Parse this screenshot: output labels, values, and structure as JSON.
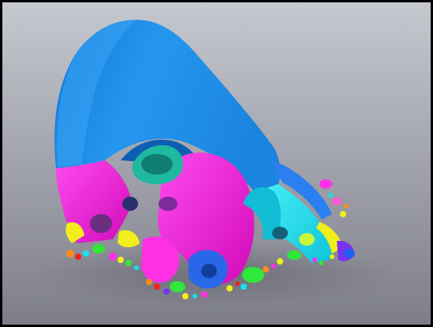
{
  "image": {
    "subject": "fractal-surface-render",
    "border_color": "#000000",
    "background_top": "#c6c8d0",
    "background_bottom": "#7d7e88",
    "palette": {
      "blue": "#1b8de8",
      "blue_light": "#3aa6f5",
      "magenta": "#f010d6",
      "magenta_light": "#ff50ee",
      "cyan": "#18e2f0",
      "yellow": "#f2ee1c",
      "green": "#2fe83a",
      "orange": "#ff8c1a",
      "purple": "#7a32f0",
      "red": "#ef2020"
    }
  }
}
